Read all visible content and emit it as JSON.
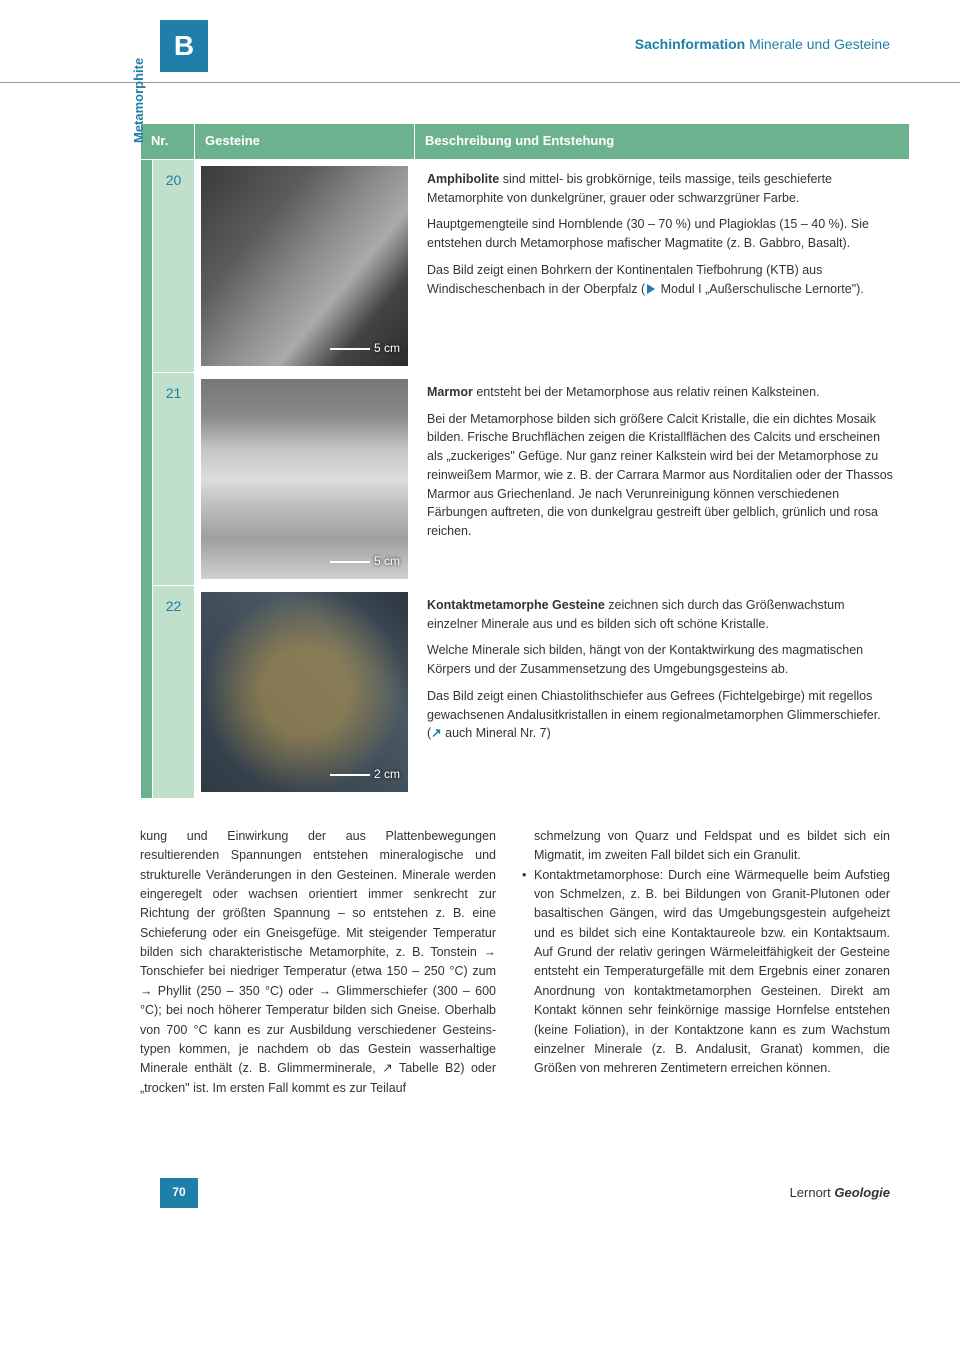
{
  "header": {
    "tab": "B",
    "category": "Sachinformation",
    "subject": "Minerale und Gesteine"
  },
  "sidebar_label": "Metamorphite",
  "table": {
    "head_nr": "Nr.",
    "head_rock": "Gesteine",
    "head_desc": "Beschreibung und Entstehung",
    "rows": [
      {
        "nr": "20",
        "scale": "5 cm",
        "p1": "Amphibolite sind mittel- bis grobkörnige, teils massige, teils geschieferte Metamorphite von dunkelgrüner, grauer oder schwarz-grüner Farbe.",
        "p2": "Hauptgemengteile sind Hornblende (30 – 70 %) und Plagioklas (15 – 40 %). Sie entstehen durch Metamorphose mafischer Magma­tite (z. B. Gabbro, Basalt).",
        "p3a": "Das Bild zeigt einen Bohrkern der Kontinentalen Tiefbohrung (KTB) aus Windischeschenbach in der Oberpfalz (",
        "p3b": " Modul I „Außerschuli­sche Lernorte\")."
      },
      {
        "nr": "21",
        "scale": "5 cm",
        "p1a": "Marmor",
        "p1b": " entsteht bei der Metamorphose aus relativ reinen Kalksteinen.",
        "p2": "Bei der Metamorphose bilden sich größere Calcit Kristalle, die ein dichtes Mosaik bilden. Frische Bruchflächen zeigen die Kristallflä­chen des Calcits und erscheinen als „zuckeriges\" Gefüge. Nur ganz reiner Kalkstein wird bei der Metamorphose zu reinweißem Marmor, wie z. B. der Carrara Marmor aus Norditalien oder der Thassos Mar­mor aus Griechenland. Je nach Verunreinigung können verschiede­nen Färbungen auftreten, die von dunkelgrau gestreift über gelblich, grünlich und rosa reichen."
      },
      {
        "nr": "22",
        "scale": "2 cm",
        "p1a": "Kontaktmetamorphe Gesteine",
        "p1b": " zeichnen sich durch das Größen­wachstum einzelner Minerale aus und es bilden sich oft schöne Kristalle.",
        "p2": "Welche Minerale sich bilden, hängt von der Kontaktwirkung des magmatischen Körpers und der Zusammensetzung des Umge­bungsgesteins ab.",
        "p3a": "Das Bild zeigt einen Chiastolithschiefer aus Gefrees (Fichtelgebirge) mit regellos gewachsenen Andalusitkristallen in einem regionalme­tamorphen Glimmerschiefer. (",
        "p3b": " auch Mineral Nr. 7)"
      }
    ]
  },
  "body": {
    "col1": "kung und Einwirkung der aus Plattenbewe­gungen resultierenden Spannungen ent­stehen mineralogische und strukturelle Ver­änderungen in den Gesteinen. Minerale werden eingeregelt oder wachsen orien­tiert immer senkrecht zur Richtung der größten Spannung – so entstehen z. B. eine Schieferung oder ein Gneisgefüge. Mit stei­gender Temperatur bilden sich charakte­ristische Metamorphite, z. B. Tonstein → Tonschiefer bei niedriger Temperatur (etwa 150 – 250 °C) zum → Phyllit (250 – 350 °C) oder → Glimmerschiefer (300 – 600 °C); bei noch höherer Temperatur bil­den sich Gneise. Oberhalb von 700 °C kann es zur Ausbildung verschiedener Gesteins­typen kommen, je nachdem ob das Gestein wasserhaltige Minerale enthält (z. B. Glim­merminerale, ↗ Tabelle B2) oder „trocken\" ist. Im ersten Fall kommt es zur Teilauf­",
    "col2a": "schmelzung von Quarz und Feldspat und es bildet sich ein Migmatit, im zweiten Fall bildet sich ein Granulit.",
    "col2b": "Kontaktmetamorphose: Durch eine Wär­mequelle beim Aufstieg von Schmelzen, z. B. bei Bildungen von Granit-Plutonen oder basaltischen Gängen, wird das Um­gebungsgestein aufgeheizt und es bildet sich eine Kontaktaureole bzw. ein Kon­taktsaum. Auf Grund der relativ geringen Wärmeleitfähigkeit der Gesteine entsteht ein Temperaturgefälle mit dem Ergebnis einer zonaren Anordnung von kontaktme­tamorphen Gesteinen. Direkt am Kontakt können sehr feinkörnige massige Horn­felse entstehen (keine Foliation), in der Kontaktzone kann es zum Wachstum ein­zelner Minerale (z. B. Andalusit, Granat) kommen, die Größen von mehreren Zen­timetern erreichen können."
  },
  "footer": {
    "page": "70",
    "pub_a": "Lernort ",
    "pub_b": "Geologie"
  },
  "colors": {
    "accent": "#1f7fa8",
    "table_head": "#6db28e",
    "table_nr_bg": "#c0e0cb"
  }
}
